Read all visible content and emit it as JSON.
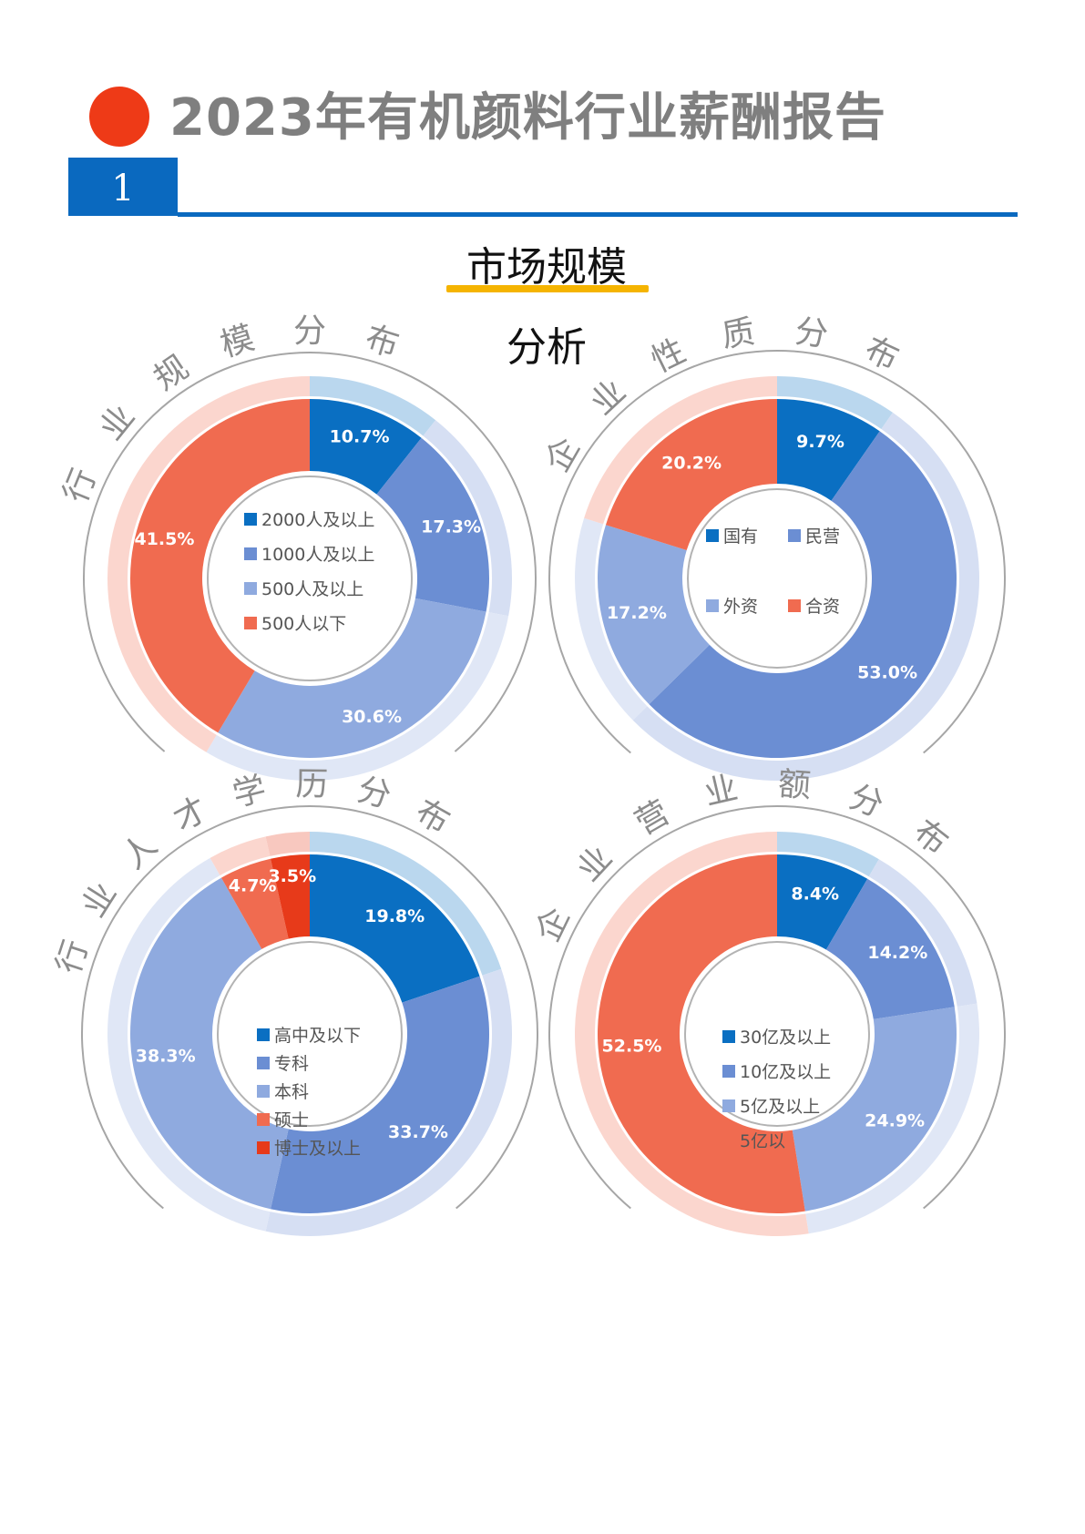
{
  "header": {
    "title": "2023年有机颜料行业薪酬报告",
    "section_number": "1",
    "subtitle_line1": "市场规模",
    "subtitle_line2": "分析"
  },
  "chart_data": [
    {
      "type": "pie",
      "title": "行业规模分布",
      "categories": [
        "2000人及以上",
        "1000人及以上",
        "500人及以上",
        "500人以下"
      ],
      "values": [
        10.7,
        17.3,
        30.6,
        41.5
      ],
      "labels": [
        "10.7%",
        "17.3%",
        "30.6%",
        "41.5%"
      ],
      "colors": [
        "#0a6fc2",
        "#6b8ed3",
        "#8faadf",
        "#f06b50"
      ],
      "legend_layout": "list"
    },
    {
      "type": "pie",
      "title": "企业性质分布",
      "categories": [
        "国有",
        "民营",
        "外资",
        "合资"
      ],
      "values": [
        9.7,
        53.0,
        17.2,
        20.2
      ],
      "labels": [
        "9.7%",
        "53.0%",
        "17.2%",
        "20.2%"
      ],
      "colors": [
        "#0a6fc2",
        "#6b8ed3",
        "#8faadf",
        "#f06b50"
      ],
      "legend_layout": "grid"
    },
    {
      "type": "pie",
      "title": "行业人才学历分布",
      "categories": [
        "高中及以下",
        "专科",
        "本科",
        "硕士",
        "博士及以上"
      ],
      "values": [
        19.8,
        33.7,
        38.3,
        4.7,
        3.5
      ],
      "labels": [
        "19.8%",
        "33.7%",
        "38.3%",
        "4.7%",
        "3.5%"
      ],
      "colors": [
        "#0a6fc2",
        "#6b8ed3",
        "#8faadf",
        "#f06b50",
        "#e73a1a"
      ],
      "legend_layout": "list"
    },
    {
      "type": "pie",
      "title": "企业营业额分布",
      "categories": [
        "30亿及以上",
        "10亿及以上",
        "5亿及以上",
        "5亿以"
      ],
      "values": [
        8.4,
        14.2,
        24.9,
        52.5
      ],
      "labels": [
        "8.4%",
        "14.2%",
        "24.9%",
        "52.5%"
      ],
      "colors": [
        "#0a6fc2",
        "#6b8ed3",
        "#8faadf",
        "#f06b50"
      ],
      "legend_layout": "list"
    }
  ]
}
